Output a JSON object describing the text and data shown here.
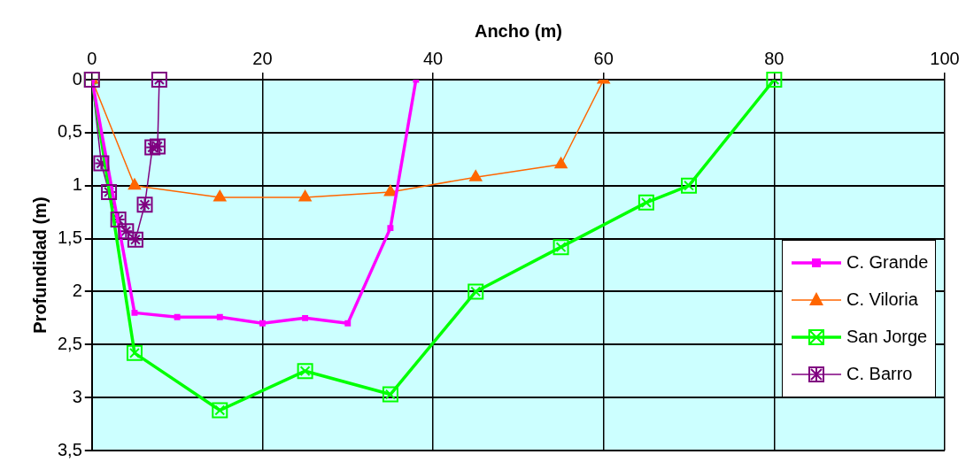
{
  "chart_data": {
    "type": "line",
    "xlabel": "Ancho (m)",
    "ylabel": "Profundidad (m)",
    "xlim": [
      0,
      100
    ],
    "xticks": [
      0,
      20,
      40,
      60,
      80,
      100
    ],
    "ylim": [
      3.5,
      0
    ],
    "yticks": [
      0,
      {
        "value": 0.5,
        "label": "0,5"
      },
      1,
      {
        "value": 1.5,
        "label": "1,5"
      },
      2,
      {
        "value": 2.5,
        "label": "2,5"
      },
      3,
      {
        "value": 3.5,
        "label": "3,5"
      }
    ],
    "grid": true,
    "legend": "right",
    "series": [
      {
        "name": "C. Grande",
        "color": "#ff00ff",
        "marker": "square",
        "x": [
          0,
          5,
          10,
          15,
          20,
          25,
          30,
          35,
          38
        ],
        "values": [
          0,
          2.2,
          2.24,
          2.24,
          2.3,
          2.25,
          2.3,
          1.4,
          0
        ]
      },
      {
        "name": "C. Viloria",
        "color": "#ff6600",
        "marker": "triangle",
        "x": [
          0,
          5,
          15,
          25,
          35,
          45,
          55,
          60
        ],
        "values": [
          0,
          1.0,
          1.11,
          1.11,
          1.06,
          0.92,
          0.8,
          0
        ]
      },
      {
        "name": "San Jorge",
        "color": "#00ff00",
        "marker": "cross",
        "x": [
          0,
          5,
          15,
          25,
          35,
          45,
          55,
          65,
          70,
          80
        ],
        "values": [
          0,
          2.58,
          3.12,
          2.75,
          2.97,
          2.0,
          1.58,
          1.16,
          1.0,
          0
        ]
      },
      {
        "name": "C. Barro",
        "color": "#800080",
        "marker": "cross",
        "x": [
          0,
          1.1,
          2.0,
          3.1,
          4.0,
          5.1,
          6.2,
          7.1,
          7.7,
          7.9
        ],
        "values": [
          0,
          0.79,
          1.06,
          1.32,
          1.43,
          1.51,
          1.18,
          0.64,
          0.63,
          0
        ]
      }
    ]
  }
}
